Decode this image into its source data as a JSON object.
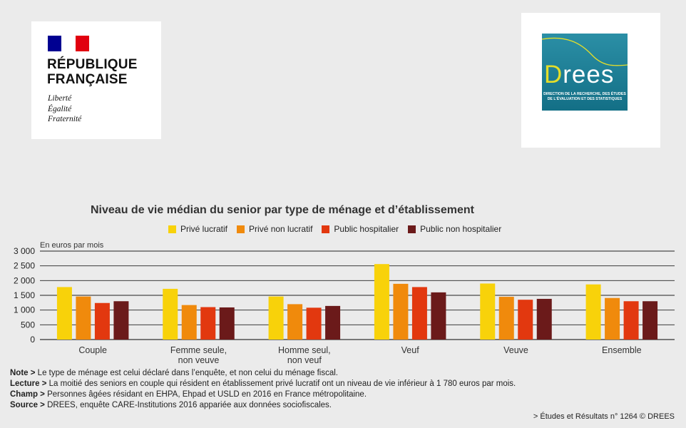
{
  "logos": {
    "rf": {
      "name_line1": "RÉPUBLIQUE",
      "name_line2": "FRANÇAISE",
      "motto": [
        "Liberté",
        "Égalité",
        "Fraternité"
      ],
      "flag_colors": [
        "#000091",
        "#ffffff",
        "#e1000f"
      ]
    },
    "drees": {
      "wordmark": "Drees",
      "subtitle_line1": "DIRECTION DE LA RECHERCHE, DES ÉTUDES",
      "subtitle_line2": "DE L'ÉVALUATION ET DES STATISTIQUES"
    }
  },
  "chart_data": {
    "type": "bar",
    "title": "Niveau de vie médian du senior par type de ménage et d’établissement",
    "ylabel": "En euros par mois",
    "xlabel": "",
    "ylim": [
      0,
      3000
    ],
    "yticks": [
      0,
      500,
      1000,
      1500,
      2000,
      2500,
      3000
    ],
    "ytick_labels": [
      "0",
      "500",
      "1 000",
      "1 500",
      "2 000",
      "2 500",
      "3 000"
    ],
    "grid": true,
    "legend_position": "top",
    "categories": [
      [
        "Couple"
      ],
      [
        "Femme seule,",
        "non veuve"
      ],
      [
        "Homme seul,",
        "non veuf"
      ],
      [
        "Veuf"
      ],
      [
        "Veuve"
      ],
      [
        "Ensemble"
      ]
    ],
    "series": [
      {
        "name": "Privé lucratif",
        "color": "#f8d20a",
        "values": [
          1780,
          1720,
          1460,
          2560,
          1900,
          1870
        ]
      },
      {
        "name": "Privé non lucratif",
        "color": "#f08a0c",
        "values": [
          1460,
          1170,
          1200,
          1890,
          1450,
          1410
        ]
      },
      {
        "name": "Public hospitalier",
        "color": "#e2380f",
        "values": [
          1240,
          1100,
          1080,
          1780,
          1350,
          1300
        ]
      },
      {
        "name": "Public non hospitalier",
        "color": "#6b1a1a",
        "values": [
          1300,
          1090,
          1140,
          1600,
          1380,
          1300
        ]
      }
    ]
  },
  "notes": [
    {
      "label": "Note > ",
      "text": "Le type de ménage est celui déclaré dans l’enquête, et non celui du ménage fiscal."
    },
    {
      "label": "Lecture > ",
      "text": "La moitié des seniors en couple qui résident en établissement privé lucratif ont un niveau de vie inférieur à 1 780 euros par mois."
    },
    {
      "label": "Champ > ",
      "text": "Personnes âgées résidant en EHPA, Ehpad et USLD en 2016 en France métropolitaine."
    },
    {
      "label": "Source > ",
      "text": "DREES, enquête CARE-Institutions 2016 appariée aux données sociofiscales."
    }
  ],
  "source_footer": "> Études et Résultats n° 1264 © DREES"
}
